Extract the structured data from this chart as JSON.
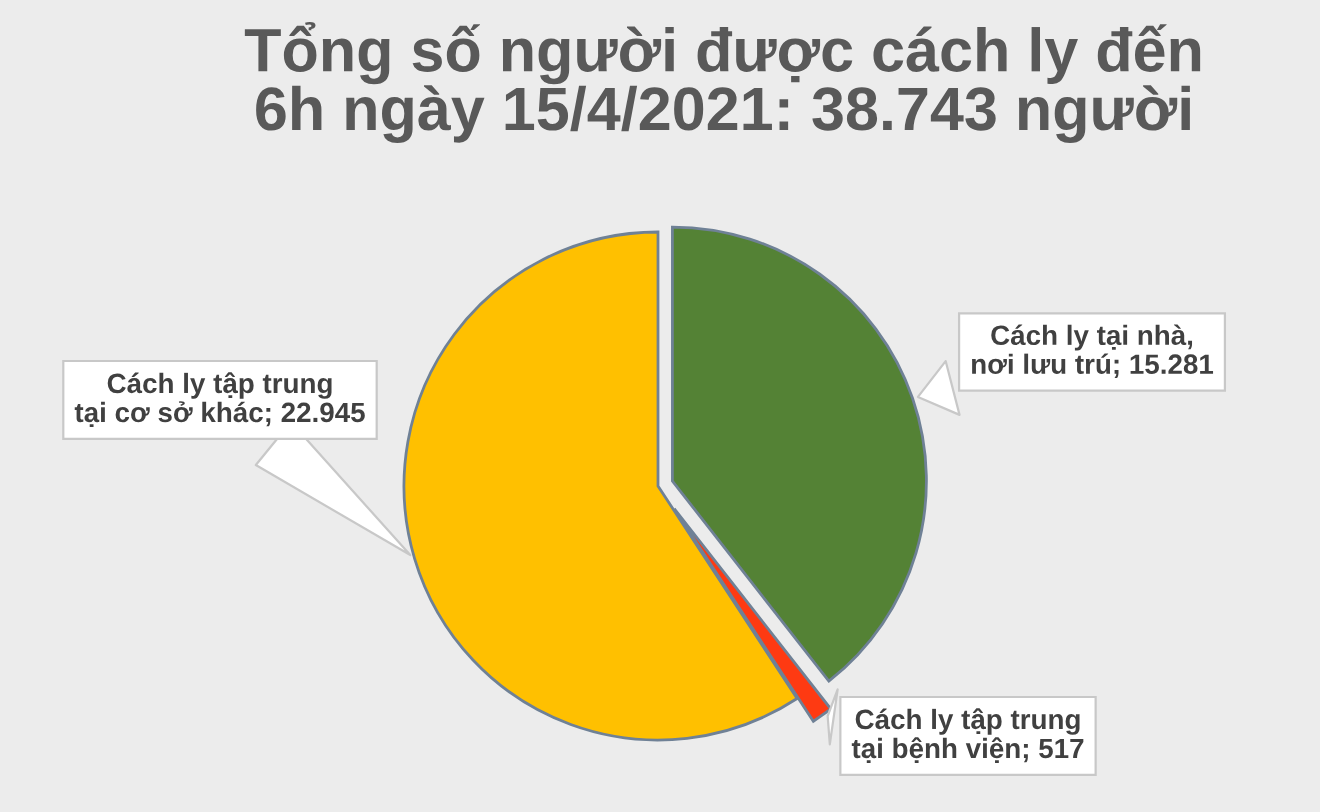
{
  "chart_data": {
    "type": "pie",
    "title": "Tổng số người được cách ly đến 6h ngày 15/4/2021: 38.743 người",
    "categories": [
      "Cách ly tại nhà, nơi lưu trú",
      "Cách ly tập trung tại bệnh viện",
      "Cách ly tập trung tại cơ sở khác"
    ],
    "values": [
      15281,
      517,
      22945
    ],
    "value_labels": [
      "15.281",
      "517",
      "22.945"
    ],
    "colors": [
      "#548235",
      "#fe3a12",
      "#ffc000"
    ]
  }
}
